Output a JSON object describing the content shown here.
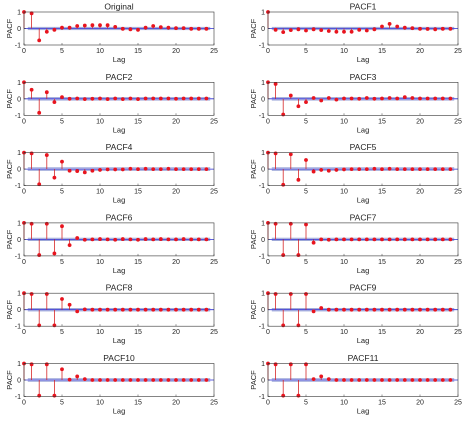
{
  "figure": {
    "colors": {
      "stem": "#d62728",
      "marker": "#e8141e",
      "band": "#b8c0e0",
      "bandEdge": "#6f7fc8",
      "baseline": "#2b2bd6",
      "axis": "#333333"
    }
  },
  "chart_data": [
    {
      "type": "stem",
      "title": "Original",
      "xlabel": "Lag",
      "ylabel": "PACF",
      "xlim": [
        0,
        25
      ],
      "ylim": [
        -1,
        1
      ],
      "xticks": [
        "0",
        "5",
        "10",
        "15",
        "20",
        "25"
      ],
      "yticks": [
        "-1",
        "0",
        "1"
      ],
      "confidence": 0.08,
      "x": [
        0,
        1,
        2,
        3,
        4,
        5,
        6,
        7,
        8,
        9,
        10,
        11,
        12,
        13,
        14,
        15,
        16,
        17,
        18,
        19,
        20,
        21,
        22,
        23,
        24
      ],
      "values": [
        1.0,
        0.92,
        -0.72,
        -0.2,
        -0.08,
        0.05,
        0.05,
        0.15,
        0.18,
        0.2,
        0.2,
        0.2,
        0.1,
        -0.02,
        -0.05,
        -0.08,
        0.05,
        0.15,
        0.08,
        0.05,
        0.02,
        0.02,
        -0.02,
        -0.02,
        -0.02
      ]
    },
    {
      "type": "stem",
      "title": "PACF1",
      "xlabel": "Lag",
      "ylabel": "PACF",
      "xlim": [
        0,
        25
      ],
      "ylim": [
        -1,
        1
      ],
      "xticks": [
        "0",
        "5",
        "10",
        "15",
        "20",
        "25"
      ],
      "yticks": [
        "-1",
        "0",
        "1"
      ],
      "confidence": 0.08,
      "x": [
        0,
        1,
        2,
        3,
        4,
        5,
        6,
        7,
        8,
        9,
        10,
        11,
        12,
        13,
        14,
        15,
        16,
        17,
        18,
        19,
        20,
        21,
        22,
        23,
        24
      ],
      "values": [
        1.0,
        -0.08,
        -0.22,
        -0.1,
        -0.05,
        -0.12,
        -0.05,
        -0.1,
        -0.15,
        -0.2,
        -0.2,
        -0.2,
        -0.08,
        -0.12,
        -0.05,
        0.12,
        0.28,
        0.12,
        0.05,
        0.02,
        -0.02,
        -0.03,
        -0.05,
        -0.02,
        -0.02
      ]
    },
    {
      "type": "stem",
      "title": "PACF2",
      "xlabel": "Lag",
      "ylabel": "PACF",
      "xlim": [
        0,
        25
      ],
      "ylim": [
        -1,
        1
      ],
      "xticks": [
        "0",
        "5",
        "10",
        "15",
        "20",
        "25"
      ],
      "yticks": [
        "-1",
        "0",
        "1"
      ],
      "confidence": 0.08,
      "x": [
        0,
        1,
        2,
        3,
        4,
        5,
        6,
        7,
        8,
        9,
        10,
        11,
        12,
        13,
        14,
        15,
        16,
        17,
        18,
        19,
        20,
        21,
        22,
        23,
        24
      ],
      "values": [
        1.0,
        0.55,
        -0.85,
        0.4,
        -0.2,
        0.1,
        0.0,
        0.02,
        -0.02,
        0.0,
        0.02,
        -0.02,
        0.02,
        -0.02,
        0.02,
        -0.02,
        0.02,
        0.02,
        0.02,
        0.02,
        0.0,
        0.02,
        0.02,
        0.02,
        0.02
      ]
    },
    {
      "type": "stem",
      "title": "PACF3",
      "xlabel": "Lag",
      "ylabel": "PACF",
      "xlim": [
        0,
        25
      ],
      "ylim": [
        -1,
        1
      ],
      "xticks": [
        "0",
        "5",
        "10",
        "15",
        "20",
        "25"
      ],
      "yticks": [
        "-1",
        "0",
        "1"
      ],
      "confidence": 0.08,
      "x": [
        0,
        1,
        2,
        3,
        4,
        5,
        6,
        7,
        8,
        9,
        10,
        11,
        12,
        13,
        14,
        15,
        16,
        17,
        18,
        19,
        20,
        21,
        22,
        23,
        24
      ],
      "values": [
        1.0,
        0.9,
        -0.95,
        0.2,
        -0.45,
        -0.2,
        0.05,
        -0.1,
        0.05,
        -0.05,
        0.02,
        0.02,
        0.0,
        0.05,
        0.0,
        0.02,
        0.05,
        0.02,
        0.1,
        0.05,
        0.02,
        0.02,
        0.02,
        0.02,
        0.02
      ]
    },
    {
      "type": "stem",
      "title": "PACF4",
      "xlabel": "Lag",
      "ylabel": "PACF",
      "xlim": [
        0,
        25
      ],
      "ylim": [
        -1,
        1
      ],
      "xticks": [
        "0",
        "5",
        "10",
        "15",
        "20",
        "25"
      ],
      "yticks": [
        "-1",
        "0",
        "1"
      ],
      "confidence": 0.08,
      "x": [
        0,
        1,
        2,
        3,
        4,
        5,
        6,
        7,
        8,
        9,
        10,
        11,
        12,
        13,
        14,
        15,
        16,
        17,
        18,
        19,
        20,
        21,
        22,
        23,
        24
      ],
      "values": [
        1.0,
        0.95,
        -0.92,
        0.85,
        -0.52,
        0.45,
        -0.1,
        -0.12,
        -0.2,
        -0.1,
        -0.05,
        -0.02,
        -0.02,
        -0.02,
        0.02,
        0.0,
        0.02,
        0.0,
        0.0,
        0.02,
        0.0,
        0.0,
        0.0,
        0.0,
        0.0
      ]
    },
    {
      "type": "stem",
      "title": "PACF5",
      "xlabel": "Lag",
      "ylabel": "PACF",
      "xlim": [
        0,
        25
      ],
      "ylim": [
        -1,
        1
      ],
      "xticks": [
        "0",
        "5",
        "10",
        "15",
        "20",
        "25"
      ],
      "yticks": [
        "-1",
        "0",
        "1"
      ],
      "confidence": 0.08,
      "x": [
        0,
        1,
        2,
        3,
        4,
        5,
        6,
        7,
        8,
        9,
        10,
        11,
        12,
        13,
        14,
        15,
        16,
        17,
        18,
        19,
        20,
        21,
        22,
        23,
        24
      ],
      "values": [
        1.0,
        0.95,
        -0.95,
        0.9,
        -0.65,
        0.55,
        -0.15,
        -0.05,
        -0.1,
        -0.05,
        -0.02,
        0.0,
        0.0,
        0.0,
        0.02,
        0.0,
        0.02,
        0.0,
        0.0,
        0.0,
        0.0,
        0.0,
        0.0,
        0.0,
        0.0
      ]
    },
    {
      "type": "stem",
      "title": "PACF6",
      "xlabel": "Lag",
      "ylabel": "PACF",
      "xlim": [
        0,
        25
      ],
      "ylim": [
        -1,
        1
      ],
      "xticks": [
        "0",
        "5",
        "10",
        "15",
        "20",
        "25"
      ],
      "yticks": [
        "-1",
        "0",
        "1"
      ],
      "confidence": 0.08,
      "x": [
        0,
        1,
        2,
        3,
        4,
        5,
        6,
        7,
        8,
        9,
        10,
        11,
        12,
        13,
        14,
        15,
        16,
        17,
        18,
        19,
        20,
        21,
        22,
        23,
        24
      ],
      "values": [
        1.0,
        0.95,
        -0.95,
        0.95,
        -0.85,
        0.8,
        -0.35,
        0.08,
        -0.02,
        0.0,
        0.02,
        0.0,
        -0.02,
        0.02,
        0.0,
        -0.02,
        0.02,
        0.0,
        0.02,
        0.0,
        0.0,
        0.02,
        0.0,
        0.0,
        0.0
      ]
    },
    {
      "type": "stem",
      "title": "PACF7",
      "xlabel": "Lag",
      "ylabel": "PACF",
      "xlim": [
        0,
        25
      ],
      "ylim": [
        -1,
        1
      ],
      "xticks": [
        "0",
        "5",
        "10",
        "15",
        "20",
        "25"
      ],
      "yticks": [
        "-1",
        "0",
        "1"
      ],
      "confidence": 0.08,
      "x": [
        0,
        1,
        2,
        3,
        4,
        5,
        6,
        7,
        8,
        9,
        10,
        11,
        12,
        13,
        14,
        15,
        16,
        17,
        18,
        19,
        20,
        21,
        22,
        23,
        24
      ],
      "values": [
        1.0,
        0.95,
        -0.95,
        0.95,
        -0.95,
        0.9,
        -0.2,
        0.0,
        -0.02,
        0.0,
        0.0,
        0.0,
        0.0,
        0.0,
        0.0,
        0.0,
        0.0,
        0.0,
        0.0,
        0.0,
        0.0,
        0.0,
        0.0,
        0.0,
        0.0
      ]
    },
    {
      "type": "stem",
      "title": "PACF8",
      "xlabel": "Lag",
      "ylabel": "PACF",
      "xlim": [
        0,
        25
      ],
      "ylim": [
        -1,
        1
      ],
      "xticks": [
        "0",
        "5",
        "10",
        "15",
        "20",
        "25"
      ],
      "yticks": [
        "-1",
        "0",
        "1"
      ],
      "confidence": 0.08,
      "x": [
        0,
        1,
        2,
        3,
        4,
        5,
        6,
        7,
        8,
        9,
        10,
        11,
        12,
        13,
        14,
        15,
        16,
        17,
        18,
        19,
        20,
        21,
        22,
        23,
        24
      ],
      "values": [
        1.0,
        0.95,
        -0.95,
        0.95,
        -0.95,
        0.65,
        0.3,
        -0.1,
        0.02,
        0.0,
        0.0,
        0.0,
        0.0,
        0.0,
        0.0,
        0.0,
        0.0,
        0.0,
        0.0,
        0.0,
        0.0,
        0.0,
        0.0,
        0.0,
        0.0
      ]
    },
    {
      "type": "stem",
      "title": "PACF9",
      "xlabel": "Lag",
      "ylabel": "PACF",
      "xlim": [
        0,
        25
      ],
      "ylim": [
        -1,
        1
      ],
      "xticks": [
        "0",
        "5",
        "10",
        "15",
        "20",
        "25"
      ],
      "yticks": [
        "-1",
        "0",
        "1"
      ],
      "confidence": 0.08,
      "x": [
        0,
        1,
        2,
        3,
        4,
        5,
        6,
        7,
        8,
        9,
        10,
        11,
        12,
        13,
        14,
        15,
        16,
        17,
        18,
        19,
        20,
        21,
        22,
        23,
        24
      ],
      "values": [
        1.0,
        0.95,
        -0.95,
        0.95,
        -0.95,
        0.95,
        -0.1,
        0.1,
        0.0,
        0.0,
        0.0,
        0.0,
        0.0,
        0.0,
        0.0,
        0.0,
        0.0,
        0.0,
        0.0,
        0.0,
        0.0,
        0.0,
        0.0,
        0.0,
        0.0
      ]
    },
    {
      "type": "stem",
      "title": "PACF10",
      "xlabel": "Lag",
      "ylabel": "PACF",
      "xlim": [
        0,
        25
      ],
      "ylim": [
        -1,
        1
      ],
      "xticks": [
        "0",
        "5",
        "10",
        "15",
        "20",
        "25"
      ],
      "yticks": [
        "-1",
        "0",
        "1"
      ],
      "confidence": 0.08,
      "x": [
        0,
        1,
        2,
        3,
        4,
        5,
        6,
        7,
        8,
        9,
        10,
        11,
        12,
        13,
        14,
        15,
        16,
        17,
        18,
        19,
        20,
        21,
        22,
        23,
        24
      ],
      "values": [
        1.0,
        0.95,
        -0.95,
        0.95,
        -0.95,
        0.65,
        0.02,
        0.22,
        0.05,
        0.0,
        0.0,
        0.0,
        0.0,
        0.0,
        0.0,
        0.0,
        0.0,
        0.0,
        0.0,
        0.0,
        0.0,
        0.0,
        0.0,
        0.0,
        0.0
      ]
    },
    {
      "type": "stem",
      "title": "PACF11",
      "xlabel": "Lag",
      "ylabel": "PACF",
      "xlim": [
        0,
        25
      ],
      "ylim": [
        -1,
        1
      ],
      "xticks": [
        "0",
        "5",
        "10",
        "15",
        "20",
        "25"
      ],
      "yticks": [
        "-1",
        "0",
        "1"
      ],
      "confidence": 0.08,
      "x": [
        0,
        1,
        2,
        3,
        4,
        5,
        6,
        7,
        8,
        9,
        10,
        11,
        12,
        13,
        14,
        15,
        16,
        17,
        18,
        19,
        20,
        21,
        22,
        23,
        24
      ],
      "values": [
        1.0,
        0.95,
        -0.95,
        0.95,
        -0.95,
        0.95,
        0.05,
        0.22,
        0.05,
        0.0,
        0.0,
        0.0,
        0.0,
        0.0,
        0.0,
        0.0,
        0.0,
        0.0,
        0.0,
        0.0,
        0.0,
        0.0,
        0.0,
        0.0,
        0.0
      ]
    }
  ]
}
